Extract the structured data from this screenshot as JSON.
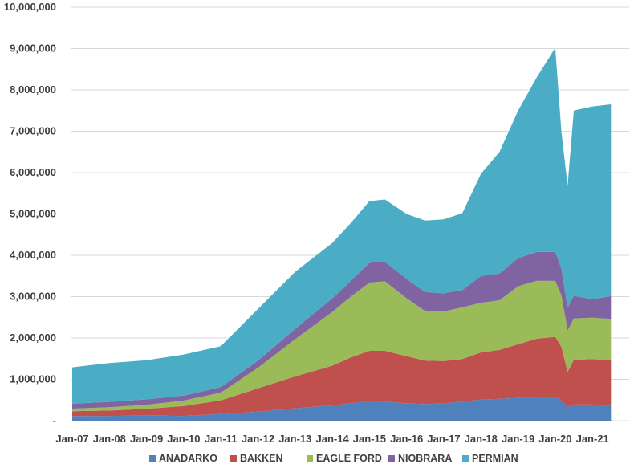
{
  "chart_data": {
    "type": "area",
    "stacked": true,
    "x": [
      "Jan-07",
      "Jan-08",
      "Jan-09",
      "Jan-10",
      "Jan-11",
      "Jan-12",
      "Jan-13",
      "Jan-14",
      "Jul-14",
      "Jan-15",
      "Jun-15",
      "Jan-16",
      "Jul-16",
      "Jan-17",
      "Jul-17",
      "Jan-18",
      "Jul-18",
      "Jan-19",
      "Jul-19",
      "Jan-20",
      "Mar-20",
      "May-20",
      "Jul-20",
      "Jan-21",
      "Jul-21"
    ],
    "x_tick_labels": [
      "Jan-07",
      "Jan-08",
      "Jan-09",
      "Jan-10",
      "Jan-11",
      "Jan-12",
      "Jan-13",
      "Jan-14",
      "Jan-15",
      "Jan-16",
      "Jan-17",
      "Jan-18",
      "Jan-19",
      "Jan-20",
      "Jan-21"
    ],
    "y_tick_labels": [
      "-",
      "1,000,000",
      "2,000,000",
      "3,000,000",
      "4,000,000",
      "5,000,000",
      "6,000,000",
      "7,000,000",
      "8,000,000",
      "9,000,000",
      "10,000,000"
    ],
    "ylim": [
      0,
      10000000
    ],
    "grid": true,
    "legend_position": "bottom",
    "series": [
      {
        "name": "ANADARKO",
        "color": "#4f81bd",
        "values": [
          110000,
          115000,
          125000,
          115000,
          160000,
          220000,
          300000,
          370000,
          420000,
          480000,
          460000,
          420000,
          400000,
          420000,
          460000,
          510000,
          530000,
          550000,
          570000,
          580000,
          480000,
          330000,
          390000,
          390000,
          360000
        ]
      },
      {
        "name": "BAKKEN",
        "color": "#c0504d",
        "values": [
          120000,
          130000,
          160000,
          240000,
          330000,
          560000,
          770000,
          960000,
          1110000,
          1210000,
          1230000,
          1140000,
          1050000,
          1020000,
          1030000,
          1140000,
          1180000,
          1300000,
          1410000,
          1450000,
          1300000,
          850000,
          1080000,
          1100000,
          1100000
        ]
      },
      {
        "name": "EAGLE FORD",
        "color": "#9bbb59",
        "values": [
          60000,
          80000,
          100000,
          130000,
          190000,
          500000,
          900000,
          1300000,
          1470000,
          1650000,
          1680000,
          1400000,
          1200000,
          1200000,
          1250000,
          1200000,
          1200000,
          1400000,
          1400000,
          1350000,
          1250000,
          1000000,
          1000000,
          1000000,
          1000000
        ]
      },
      {
        "name": "NIOBRARA",
        "color": "#8064a2",
        "values": [
          120000,
          130000,
          130000,
          120000,
          130000,
          170000,
          250000,
          330000,
          380000,
          480000,
          470000,
          470000,
          460000,
          440000,
          420000,
          650000,
          650000,
          680000,
          700000,
          700000,
          650000,
          550000,
          550000,
          450000,
          550000
        ]
      },
      {
        "name": "PERMIAN",
        "color": "#4bacc6",
        "values": [
          880000,
          940000,
          945000,
          995000,
          990000,
          1250000,
          1380000,
          1340000,
          1400000,
          1490000,
          1510000,
          1570000,
          1730000,
          1790000,
          1860000,
          2470000,
          2940000,
          3570000,
          4220000,
          4940000,
          3300000,
          2950000,
          4480000,
          4660000,
          4640000
        ]
      }
    ]
  }
}
